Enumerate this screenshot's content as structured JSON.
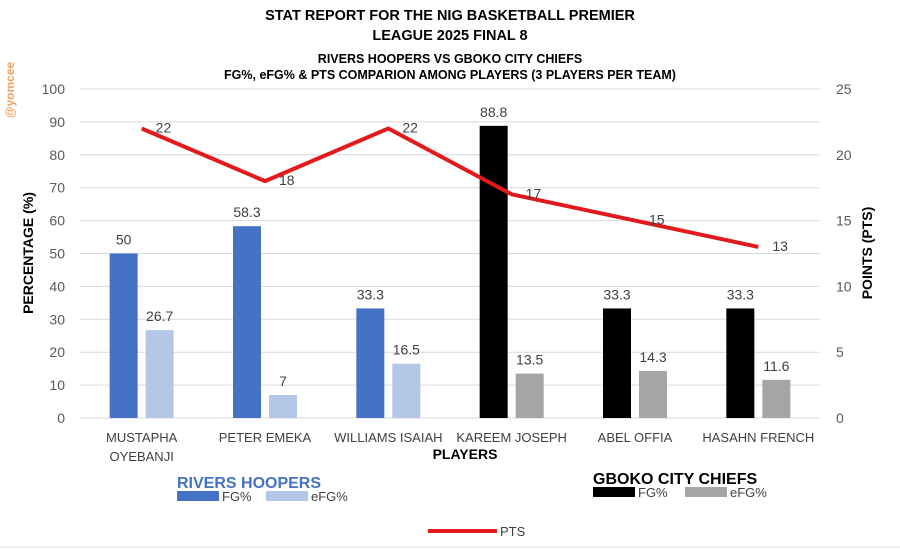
{
  "chart_data": {
    "type": "bar",
    "title_lines": [
      "STAT REPORT FOR THE NIG BASKETBALL PREMIER",
      "LEAGUE 2025 FINAL 8"
    ],
    "subtitle_lines": [
      "RIVERS HOOPERS VS GBOKO CITY CHIEFS",
      "FG%, eFG% & PTS COMPARION AMONG PLAYERS (3 PLAYERS PER TEAM)"
    ],
    "watermark": "@yomcee",
    "xlabel": "PLAYERS",
    "ylabel": "PERCENTAGE (%)",
    "y2label": "POINTS (PTS)",
    "ylim": [
      0,
      100
    ],
    "y2lim": [
      0,
      25
    ],
    "yticks": [
      "0",
      "10",
      "20",
      "30",
      "40",
      "50",
      "60",
      "70",
      "80",
      "90",
      "100"
    ],
    "y2ticks": [
      "0",
      "5",
      "10",
      "15",
      "20",
      "25"
    ],
    "categories": [
      [
        "MUSTAPHA",
        "OYEBANJI"
      ],
      [
        "PETER EMEKA"
      ],
      [
        "WILLIAMS ISAIAH"
      ],
      [
        "KAREEM JOSEPH"
      ],
      [
        "ABEL OFFIA"
      ],
      [
        "HASAHN FRENCH"
      ]
    ],
    "series": [
      {
        "key": "fg",
        "values": [
          50,
          58.3,
          33.3,
          88.8,
          33.3,
          33.3
        ],
        "labels": [
          "50",
          "58.3",
          "33.3",
          "88.8",
          "33.3",
          "33.3"
        ]
      },
      {
        "key": "efg",
        "values": [
          26.7,
          7,
          16.5,
          13.5,
          14.3,
          11.6
        ],
        "labels": [
          "26.7",
          "7",
          "16.5",
          "13.5",
          "14.3",
          "11.6"
        ]
      },
      {
        "key": "pts",
        "name": "PTS",
        "axis": "right",
        "values": [
          22,
          18,
          22,
          17,
          15,
          13
        ],
        "labels": [
          "22",
          "18",
          "22",
          "17",
          "15",
          "13"
        ]
      }
    ],
    "team_of_player": [
      0,
      0,
      0,
      1,
      1,
      1
    ],
    "teams": [
      {
        "name": "RIVERS HOOPERS",
        "fg_label": "FG%",
        "efg_label": "eFG%",
        "fg_color": "#4472c4",
        "efg_color": "#b4c7e7",
        "name_color": "#4472c4"
      },
      {
        "name": "GBOKO CITY CHIEFS",
        "fg_label": "FG%",
        "efg_label": "eFG%",
        "fg_color": "#000000",
        "efg_color": "#a5a5a5",
        "name_color": "#000000"
      }
    ],
    "pts_color": "#e31a1c",
    "grid": true,
    "legend": "bottom"
  }
}
